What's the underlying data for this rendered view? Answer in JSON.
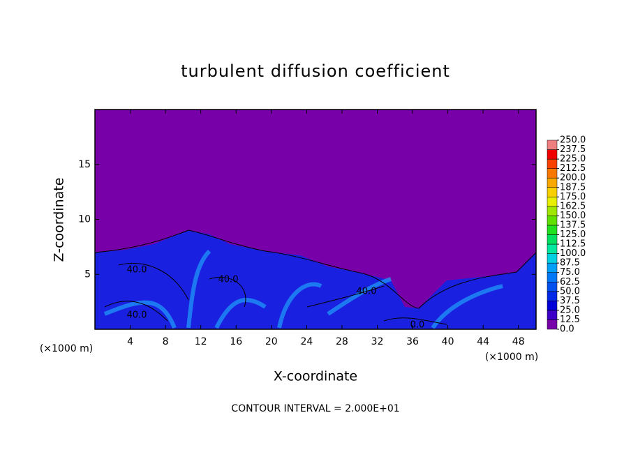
{
  "chart_data": {
    "type": "contour",
    "title": "turbulent diffusion coefficient",
    "x_label": "X-coordinate",
    "y_label": "Z-coordinate",
    "x_unit": "(×1000 m)",
    "footer": "CONTOUR INTERVAL = 2.000E+01",
    "xlim": [
      0,
      50
    ],
    "ylim": [
      0,
      20
    ],
    "xticks": [
      4,
      8,
      12,
      16,
      20,
      24,
      28,
      32,
      36,
      40,
      44,
      48
    ],
    "yticks": [
      5,
      10,
      15
    ],
    "contour_labels": [
      "40.0",
      "40.0",
      "40.0",
      "40.0",
      "0.0"
    ],
    "colorbar": {
      "ticks": [
        {
          "value": 0,
          "label": "0.0"
        },
        12.5,
        {
          "value": 25,
          "label": "25.0"
        },
        37.5,
        {
          "value": 50,
          "label": "50.0"
        },
        62.5,
        {
          "value": 75,
          "label": "75.0"
        },
        87.5,
        {
          "value": 100,
          "label": "100.0"
        },
        112.5,
        {
          "value": 125,
          "label": "125.0"
        },
        137.5,
        {
          "value": 150,
          "label": "150.0"
        },
        162.5,
        {
          "value": 175,
          "label": "175.0"
        },
        187.5,
        {
          "value": 200,
          "label": "200.0"
        },
        212.5,
        {
          "value": 225,
          "label": "225.0"
        },
        237.5,
        {
          "value": 250,
          "label": "250.0"
        }
      ],
      "colors": [
        "#7800a8",
        "#3c00c8",
        "#0000d8",
        "#0028e8",
        "#0050f0",
        "#0078f8",
        "#00a0f8",
        "#00d0e0",
        "#00e8a0",
        "#00e060",
        "#20e020",
        "#60e000",
        "#a0e800",
        "#e8f000",
        "#f8d000",
        "#f8a800",
        "#f87800",
        "#f84000",
        "#f00000",
        "#f08080"
      ]
    }
  }
}
